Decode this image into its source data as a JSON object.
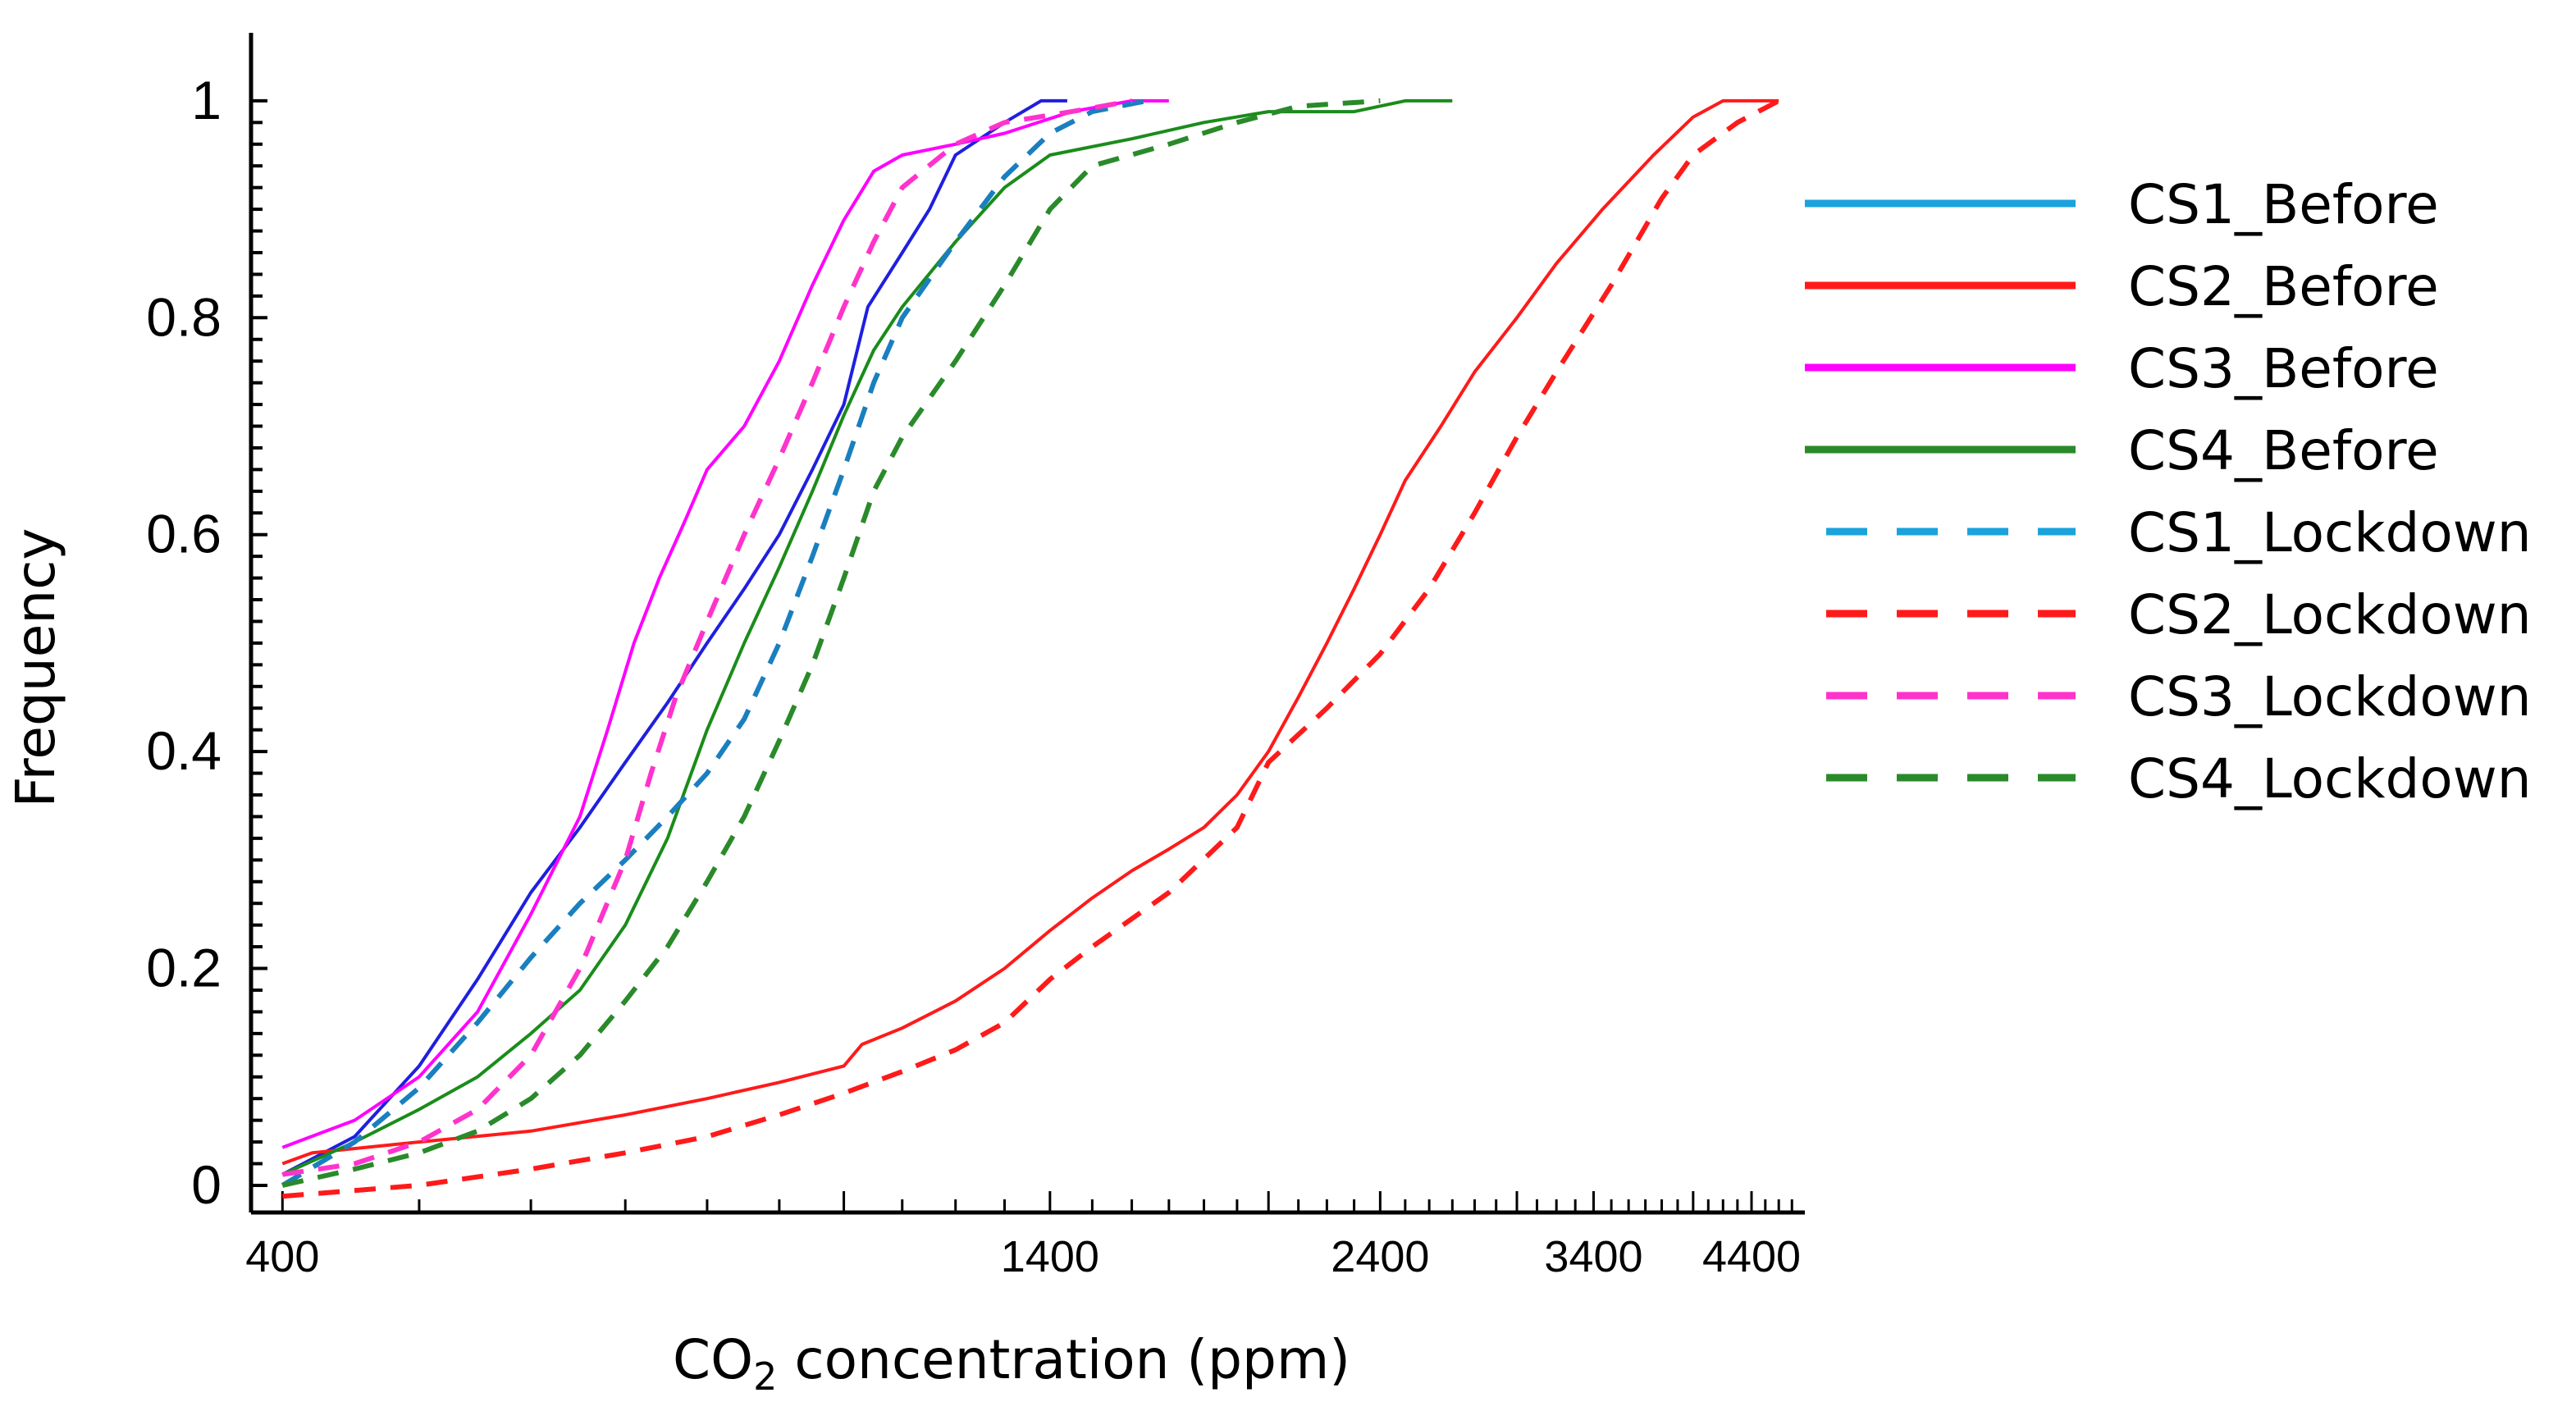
{
  "chart_data": {
    "type": "line",
    "title": "",
    "xlabel": {
      "prefix": "CO",
      "sub": "2",
      "suffix": " concentration (ppm)"
    },
    "ylabel": "Frequency",
    "x_scale": "log",
    "xlim": [
      380,
      4800
    ],
    "ylim": [
      -0.025,
      1.04
    ],
    "x_ticks": [
      400,
      1400,
      2400,
      3400,
      4400
    ],
    "x_tick_labels": [
      "400",
      "1400",
      "2400",
      "3400",
      "4400"
    ],
    "y_ticks": [
      0,
      0.2,
      0.4,
      0.6,
      0.8,
      1
    ],
    "y_tick_labels": [
      "0",
      "0.2",
      "0.4",
      "0.6",
      "0.8",
      "1"
    ],
    "legend_position": "right",
    "series": [
      {
        "name": "CS1_Before",
        "color": "#1f1fe0",
        "legend_color": "#1aa3dc",
        "dash": false,
        "points": [
          [
            400,
            0.01
          ],
          [
            450,
            0.045
          ],
          [
            500,
            0.11
          ],
          [
            550,
            0.19
          ],
          [
            600,
            0.27
          ],
          [
            650,
            0.33
          ],
          [
            700,
            0.39
          ],
          [
            750,
            0.445
          ],
          [
            800,
            0.5
          ],
          [
            850,
            0.55
          ],
          [
            900,
            0.6
          ],
          [
            950,
            0.66
          ],
          [
            1000,
            0.72
          ],
          [
            1040,
            0.81
          ],
          [
            1100,
            0.86
          ],
          [
            1150,
            0.9
          ],
          [
            1200,
            0.95
          ],
          [
            1300,
            0.98
          ],
          [
            1380,
            1.0
          ],
          [
            1440,
            1.0
          ]
        ]
      },
      {
        "name": "CS2_Before",
        "color": "#ff1a1a",
        "legend_color": "#ff1a1a",
        "dash": false,
        "points": [
          [
            400,
            0.02
          ],
          [
            420,
            0.03
          ],
          [
            500,
            0.04
          ],
          [
            600,
            0.05
          ],
          [
            700,
            0.065
          ],
          [
            800,
            0.08
          ],
          [
            900,
            0.095
          ],
          [
            1000,
            0.11
          ],
          [
            1030,
            0.13
          ],
          [
            1100,
            0.145
          ],
          [
            1200,
            0.17
          ],
          [
            1300,
            0.2
          ],
          [
            1400,
            0.235
          ],
          [
            1500,
            0.265
          ],
          [
            1600,
            0.29
          ],
          [
            1700,
            0.31
          ],
          [
            1800,
            0.33
          ],
          [
            1900,
            0.36
          ],
          [
            2000,
            0.4
          ],
          [
            2100,
            0.45
          ],
          [
            2200,
            0.5
          ],
          [
            2300,
            0.55
          ],
          [
            2400,
            0.6
          ],
          [
            2500,
            0.65
          ],
          [
            2650,
            0.7
          ],
          [
            2800,
            0.75
          ],
          [
            3000,
            0.8
          ],
          [
            3200,
            0.85
          ],
          [
            3450,
            0.9
          ],
          [
            3750,
            0.95
          ],
          [
            4000,
            0.985
          ],
          [
            4200,
            1.0
          ],
          [
            4600,
            1.0
          ]
        ]
      },
      {
        "name": "CS3_Before",
        "color": "#ff00ff",
        "legend_color": "#ff00ff",
        "dash": false,
        "points": [
          [
            400,
            0.035
          ],
          [
            450,
            0.06
          ],
          [
            500,
            0.1
          ],
          [
            550,
            0.16
          ],
          [
            600,
            0.25
          ],
          [
            650,
            0.34
          ],
          [
            680,
            0.42
          ],
          [
            710,
            0.5
          ],
          [
            740,
            0.56
          ],
          [
            770,
            0.61
          ],
          [
            800,
            0.66
          ],
          [
            850,
            0.7
          ],
          [
            900,
            0.76
          ],
          [
            950,
            0.83
          ],
          [
            1000,
            0.89
          ],
          [
            1050,
            0.935
          ],
          [
            1100,
            0.95
          ],
          [
            1200,
            0.96
          ],
          [
            1300,
            0.97
          ],
          [
            1450,
            0.99
          ],
          [
            1600,
            1.0
          ],
          [
            1700,
            1.0
          ]
        ]
      },
      {
        "name": "CS4_Before",
        "color": "#1a8c1a",
        "legend_color": "#2a8a2a",
        "dash": false,
        "points": [
          [
            400,
            0.01
          ],
          [
            450,
            0.04
          ],
          [
            500,
            0.07
          ],
          [
            550,
            0.1
          ],
          [
            600,
            0.14
          ],
          [
            650,
            0.18
          ],
          [
            700,
            0.24
          ],
          [
            750,
            0.32
          ],
          [
            800,
            0.42
          ],
          [
            850,
            0.5
          ],
          [
            900,
            0.57
          ],
          [
            950,
            0.64
          ],
          [
            1000,
            0.71
          ],
          [
            1050,
            0.77
          ],
          [
            1100,
            0.81
          ],
          [
            1200,
            0.87
          ],
          [
            1300,
            0.92
          ],
          [
            1400,
            0.95
          ],
          [
            1600,
            0.965
          ],
          [
            1800,
            0.98
          ],
          [
            2000,
            0.99
          ],
          [
            2300,
            0.99
          ],
          [
            2500,
            1.0
          ],
          [
            2700,
            1.0
          ]
        ]
      },
      {
        "name": "CS1_Lockdown",
        "color": "#1a7fbf",
        "legend_color": "#1aa3dc",
        "dash": true,
        "points": [
          [
            400,
            0.0
          ],
          [
            450,
            0.04
          ],
          [
            500,
            0.09
          ],
          [
            550,
            0.15
          ],
          [
            600,
            0.21
          ],
          [
            650,
            0.26
          ],
          [
            700,
            0.3
          ],
          [
            750,
            0.34
          ],
          [
            800,
            0.38
          ],
          [
            850,
            0.43
          ],
          [
            900,
            0.5
          ],
          [
            950,
            0.58
          ],
          [
            1000,
            0.66
          ],
          [
            1050,
            0.74
          ],
          [
            1100,
            0.8
          ],
          [
            1200,
            0.87
          ],
          [
            1300,
            0.93
          ],
          [
            1400,
            0.97
          ],
          [
            1500,
            0.99
          ],
          [
            1640,
            1.0
          ]
        ]
      },
      {
        "name": "CS2_Lockdown",
        "color": "#ff1a1a",
        "legend_color": "#ff1a1a",
        "dash": true,
        "points": [
          [
            400,
            -0.01
          ],
          [
            500,
            0.0
          ],
          [
            600,
            0.015
          ],
          [
            700,
            0.03
          ],
          [
            800,
            0.045
          ],
          [
            900,
            0.065
          ],
          [
            1000,
            0.085
          ],
          [
            1100,
            0.105
          ],
          [
            1200,
            0.125
          ],
          [
            1300,
            0.15
          ],
          [
            1400,
            0.19
          ],
          [
            1500,
            0.22
          ],
          [
            1700,
            0.27
          ],
          [
            1900,
            0.33
          ],
          [
            2000,
            0.39
          ],
          [
            2200,
            0.44
          ],
          [
            2400,
            0.49
          ],
          [
            2600,
            0.55
          ],
          [
            2800,
            0.62
          ],
          [
            3000,
            0.69
          ],
          [
            3200,
            0.75
          ],
          [
            3500,
            0.83
          ],
          [
            3800,
            0.91
          ],
          [
            4000,
            0.95
          ],
          [
            4300,
            0.98
          ],
          [
            4600,
            1.0
          ]
        ]
      },
      {
        "name": "CS3_Lockdown",
        "color": "#ff33cc",
        "legend_color": "#ff33cc",
        "dash": true,
        "points": [
          [
            400,
            0.01
          ],
          [
            450,
            0.02
          ],
          [
            500,
            0.04
          ],
          [
            550,
            0.07
          ],
          [
            600,
            0.12
          ],
          [
            650,
            0.2
          ],
          [
            700,
            0.3
          ],
          [
            730,
            0.38
          ],
          [
            760,
            0.45
          ],
          [
            800,
            0.52
          ],
          [
            850,
            0.6
          ],
          [
            900,
            0.67
          ],
          [
            950,
            0.74
          ],
          [
            1000,
            0.81
          ],
          [
            1050,
            0.87
          ],
          [
            1100,
            0.92
          ],
          [
            1200,
            0.96
          ],
          [
            1300,
            0.98
          ],
          [
            1450,
            0.99
          ],
          [
            1600,
            1.0
          ]
        ]
      },
      {
        "name": "CS4_Lockdown",
        "color": "#2a8a2a",
        "legend_color": "#2a8a2a",
        "dash": true,
        "points": [
          [
            400,
            0.0
          ],
          [
            450,
            0.015
          ],
          [
            500,
            0.03
          ],
          [
            550,
            0.05
          ],
          [
            600,
            0.08
          ],
          [
            650,
            0.12
          ],
          [
            700,
            0.17
          ],
          [
            750,
            0.22
          ],
          [
            800,
            0.28
          ],
          [
            850,
            0.34
          ],
          [
            900,
            0.41
          ],
          [
            950,
            0.48
          ],
          [
            1000,
            0.56
          ],
          [
            1050,
            0.64
          ],
          [
            1100,
            0.69
          ],
          [
            1200,
            0.76
          ],
          [
            1300,
            0.83
          ],
          [
            1400,
            0.9
          ],
          [
            1500,
            0.94
          ],
          [
            1700,
            0.96
          ],
          [
            1900,
            0.98
          ],
          [
            2100,
            0.995
          ],
          [
            2400,
            1.0
          ]
        ]
      }
    ]
  }
}
